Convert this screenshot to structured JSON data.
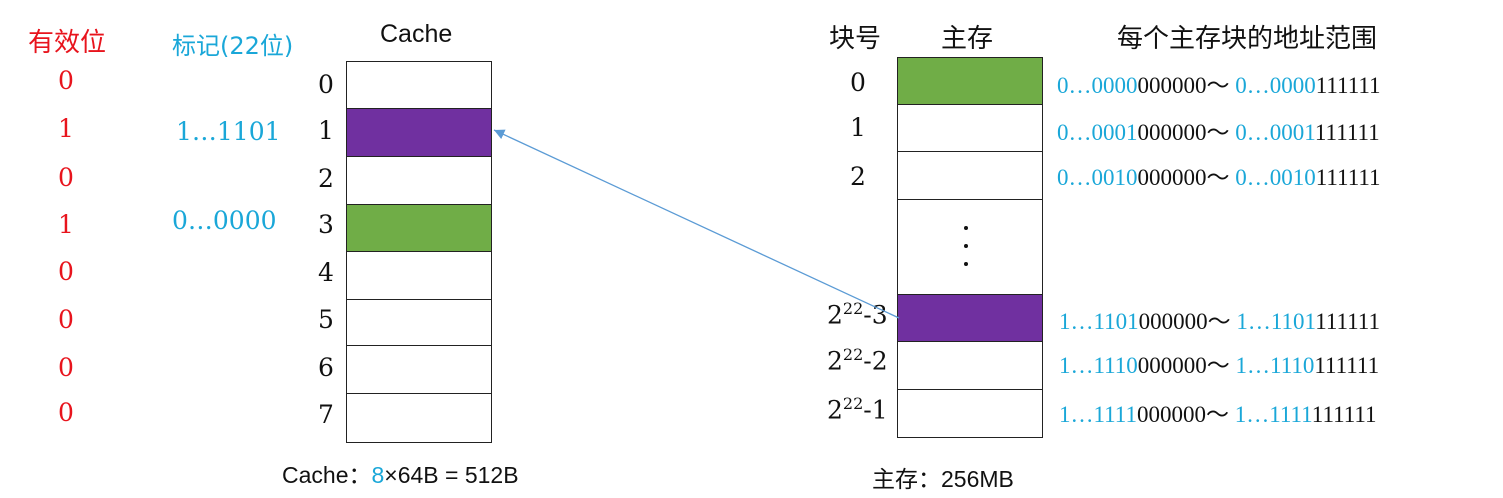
{
  "headers": {
    "valid": "有效位",
    "tag": "标记(22位)",
    "cache": "Cache",
    "block_no": "块号",
    "main_memory": "主存",
    "address_range": "每个主存块的地址范围"
  },
  "valid_bits": [
    "0",
    "1",
    "0",
    "1",
    "0",
    "0",
    "0",
    "0"
  ],
  "tags": [
    "",
    "1…1101",
    "",
    "0…0000",
    "",
    "",
    "",
    ""
  ],
  "cache_lines": [
    "0",
    "1",
    "2",
    "3",
    "4",
    "5",
    "6",
    "7"
  ],
  "cache_caption": {
    "prefix": "Cache：",
    "lines": "8",
    "rest": "×64B = 512B"
  },
  "mem_blocks": [
    {
      "label": "0"
    },
    {
      "label": "1"
    },
    {
      "label": "2"
    },
    {
      "label": "⋮"
    },
    {
      "base": "2",
      "exp": "22",
      "suffix": "-3"
    },
    {
      "base": "2",
      "exp": "22",
      "suffix": "-2"
    },
    {
      "base": "2",
      "exp": "22",
      "suffix": "-1"
    }
  ],
  "addresses": [
    {
      "hi1": "0…0000",
      "lo1": "000000",
      "sep": "～ ",
      "hi2": "0…0000",
      "lo2": "111111"
    },
    {
      "hi1": "0…0001",
      "lo1": "000000",
      "sep": "～ ",
      "hi2": "0…0001",
      "lo2": "111111"
    },
    {
      "hi1": "0…0010",
      "lo1": "000000",
      "sep": "～ ",
      "hi2": "0…0010",
      "lo2": "111111"
    },
    {
      "hi1": "1…1101",
      "lo1": "000000",
      "sep": "～ ",
      "hi2": "1…1101",
      "lo2": "111111"
    },
    {
      "hi1": "1…1110",
      "lo1": "000000",
      "sep": "～ ",
      "hi2": "1…1110",
      "lo2": "111111"
    },
    {
      "hi1": "1…1111",
      "lo1": "000000",
      "sep": "～ ",
      "hi2": "1…1111",
      "lo2": "111111"
    }
  ],
  "mem_caption": "主存：256MB",
  "colors": {
    "green": "#70ad47",
    "purple": "#7030a0",
    "red": "#e8141d",
    "blue": "#1aa7d8",
    "arrow": "#5b9bd5"
  }
}
